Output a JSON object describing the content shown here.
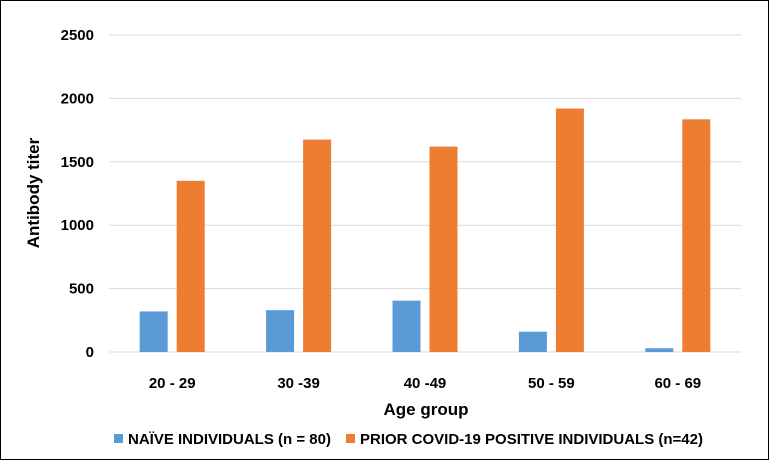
{
  "chart_data": {
    "type": "bar",
    "title": "",
    "xlabel": "Age group",
    "ylabel": "Antibody titer",
    "categories": [
      "20 - 29",
      "30 -39",
      "40 -49",
      "50 - 59",
      "60 - 69"
    ],
    "series": [
      {
        "name": "NAÏVE INDIVIDUALS (n = 80)",
        "color": "#5b9bd5",
        "values": [
          320,
          330,
          405,
          160,
          30
        ]
      },
      {
        "name": "PRIOR COVID-19 POSITIVE INDIVIDUALS (n=42)",
        "color": "#ed7d31",
        "values": [
          1350,
          1675,
          1620,
          1920,
          1835
        ]
      }
    ],
    "ylim": [
      0,
      2500
    ],
    "yticks": [
      "0",
      "500",
      "1000",
      "1500",
      "2000",
      "2500"
    ],
    "grid": true,
    "legend_position": "bottom"
  }
}
